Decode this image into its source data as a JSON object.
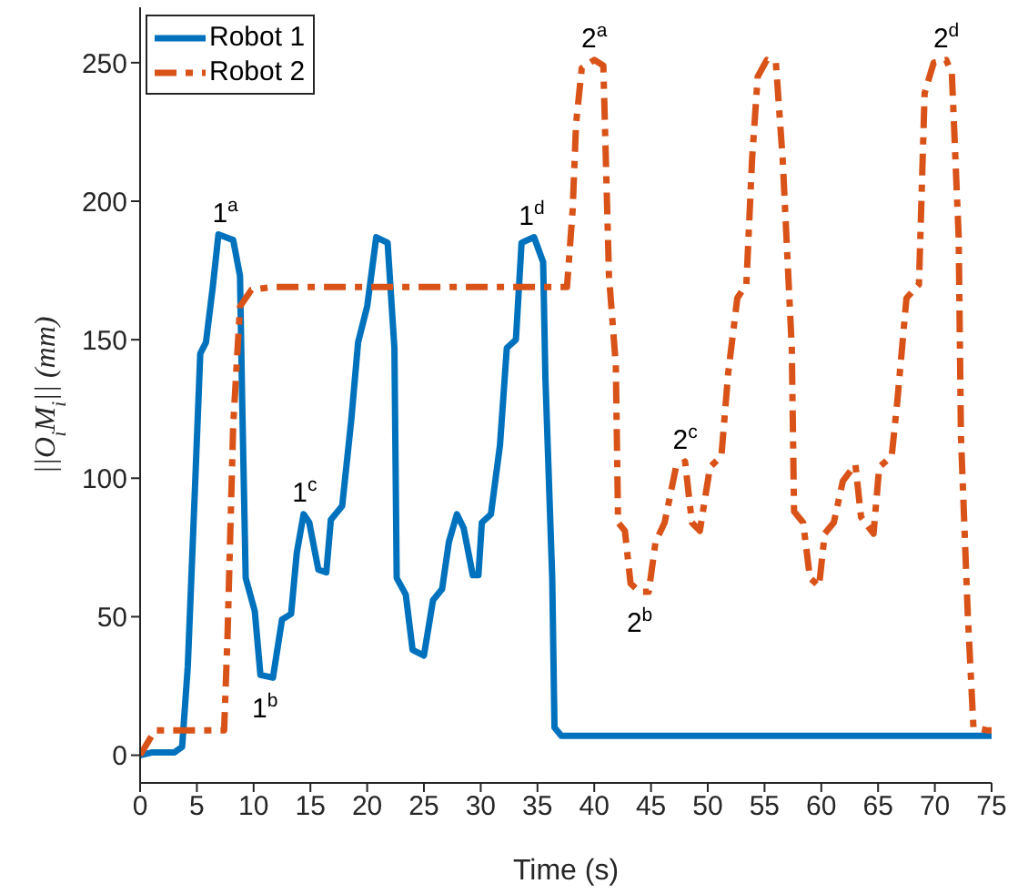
{
  "chart_data": {
    "type": "line",
    "xlabel": "Time (s)",
    "ylabel": "||O$_{i}$M$_{i}$|| (mm)",
    "xlim": [
      0,
      75
    ],
    "xticks": [
      0,
      5,
      10,
      15,
      20,
      25,
      30,
      35,
      40,
      45,
      50,
      55,
      60,
      65,
      70,
      75
    ],
    "ylim": [
      -10,
      270
    ],
    "yticks": [
      0,
      50,
      100,
      150,
      200,
      250
    ],
    "grid": false,
    "legend": "top left",
    "marker": "none",
    "series": [
      {
        "name": "Robot 1",
        "color": "#0072bd",
        "line_style": "solid",
        "x": [
          0,
          1,
          3,
          3.7,
          4.2,
          4.8,
          5.3,
          5.8,
          6.4,
          6.9,
          8.2,
          8.8,
          9.0,
          9.3,
          10.1,
          10.6,
          11.7,
          12.5,
          13.3,
          13.8,
          14.4,
          14.9,
          15.7,
          16.4,
          16.8,
          17.8,
          18.6,
          19.2,
          20.0,
          20.8,
          21.8,
          22.4,
          22.6,
          23.4,
          24.0,
          25.0,
          25.8,
          26.6,
          27.2,
          27.9,
          28.5,
          29.3,
          29.8,
          30.1,
          30.9,
          31.7,
          32.3,
          33.1,
          33.6,
          34.7,
          35.5,
          35.7,
          36.3,
          36.5,
          37.1,
          75
        ],
        "values": [
          0,
          1,
          1,
          3,
          32,
          93,
          145,
          149,
          169,
          188,
          186,
          173,
          126,
          64,
          52,
          29,
          28,
          49,
          51,
          73,
          87,
          84,
          67,
          66,
          85,
          90,
          121,
          149,
          162,
          187,
          185,
          147,
          64,
          58,
          38,
          36,
          56,
          60,
          77,
          87,
          82,
          65,
          65,
          84,
          87,
          112,
          147,
          150,
          185,
          187,
          178,
          136,
          64,
          10,
          7,
          7
        ]
      },
      {
        "name": "Robot 2",
        "color": "#d95319",
        "line_style": "dashed",
        "x": [
          0,
          1.3,
          7.4,
          7.7,
          8.2,
          8.8,
          9.8,
          11.6,
          36.5,
          37.6,
          38.1,
          38.4,
          38.9,
          40.0,
          40.8,
          41.3,
          41.9,
          42.1,
          42.7,
          43.2,
          44.0,
          44.8,
          45.4,
          46.2,
          47.2,
          48.0,
          48.6,
          49.3,
          50.2,
          51.2,
          51.8,
          52.6,
          53.4,
          53.9,
          54.4,
          55.2,
          56.0,
          56.6,
          57.4,
          57.6,
          58.4,
          59.0,
          59.8,
          60.3,
          61.1,
          61.9,
          63.0,
          63.5,
          64.6,
          65.1,
          66.2,
          66.7,
          67.5,
          68.6,
          69.1,
          69.9,
          71.0,
          71.5,
          72.1,
          72.3,
          72.9,
          73.4,
          74.6,
          75
        ],
        "values": [
          0,
          9,
          9,
          43,
          119,
          162,
          168,
          169,
          169,
          169,
          197,
          228,
          248,
          251,
          249,
          173,
          141,
          84,
          81,
          62,
          59,
          59,
          77,
          84,
          104,
          106,
          84,
          81,
          104,
          108,
          138,
          165,
          170,
          215,
          245,
          251,
          250,
          215,
          147,
          88,
          84,
          64,
          61,
          80,
          84,
          99,
          105,
          86,
          80,
          104,
          108,
          128,
          165,
          170,
          239,
          250,
          251,
          246,
          187,
          115,
          51,
          10,
          9,
          9
        ]
      }
    ],
    "annotations": [
      {
        "text": "1$^{a}$",
        "x": 7.5,
        "y": 188
      },
      {
        "text": "1$^{b}$",
        "x": 11,
        "y": 28
      },
      {
        "text": "1$^{c}$",
        "x": 14.5,
        "y": 87
      },
      {
        "text": "1$^{d}$",
        "x": 34.5,
        "y": 187
      },
      {
        "text": "2$^{a}$",
        "x": 40,
        "y": 251
      },
      {
        "text": "2$^{b}$",
        "x": 44,
        "y": 59
      },
      {
        "text": "2$^{c}$",
        "x": 48,
        "y": 106
      },
      {
        "text": "2$^{d}$",
        "x": 71,
        "y": 251
      }
    ]
  }
}
